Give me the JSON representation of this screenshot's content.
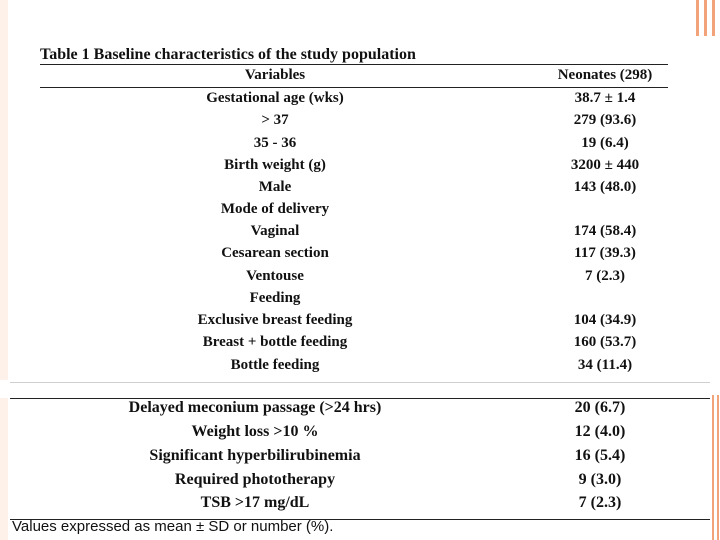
{
  "table": {
    "title": "Table 1 Baseline characteristics of the study population",
    "header": {
      "variables": "Variables",
      "neonates": "Neonates (298)"
    },
    "rows": [
      {
        "variable": "Gestational age (wks)",
        "value": "38.7 ± 1.4"
      },
      {
        "variable": "> 37",
        "value": "279 (93.6)"
      },
      {
        "variable": "35 - 36",
        "value": "19 (6.4)"
      },
      {
        "variable": "Birth weight (g)",
        "value": "3200 ± 440"
      },
      {
        "variable": "Male",
        "value": "143 (48.0)"
      },
      {
        "variable": "Mode of delivery",
        "value": ""
      },
      {
        "variable": "Vaginal",
        "value": "174 (58.4)"
      },
      {
        "variable": "Cesarean section",
        "value": "117 (39.3)"
      },
      {
        "variable": "Ventouse",
        "value": "7 (2.3)"
      },
      {
        "variable": "Feeding",
        "value": ""
      },
      {
        "variable": "Exclusive breast feeding",
        "value": "104 (34.9)"
      },
      {
        "variable": "Breast + bottle feeding",
        "value": "160 (53.7)"
      },
      {
        "variable": "Bottle feeding",
        "value": "34 (11.4)"
      }
    ],
    "rows2": [
      {
        "variable": "Delayed meconium passage (>24 hrs)",
        "value": "20 (6.7)"
      },
      {
        "variable": "Weight loss >10 %",
        "value": "12 (4.0)"
      },
      {
        "variable": "Significant hyperbilirubinemia",
        "value": "16 (5.4)"
      },
      {
        "variable": "Required phototherapy",
        "value": "9 (3.0)"
      },
      {
        "variable": "TSB >17 mg/dL",
        "value": "7 (2.3)"
      }
    ],
    "footnote": "Values expressed as mean ± SD or number (%)."
  }
}
